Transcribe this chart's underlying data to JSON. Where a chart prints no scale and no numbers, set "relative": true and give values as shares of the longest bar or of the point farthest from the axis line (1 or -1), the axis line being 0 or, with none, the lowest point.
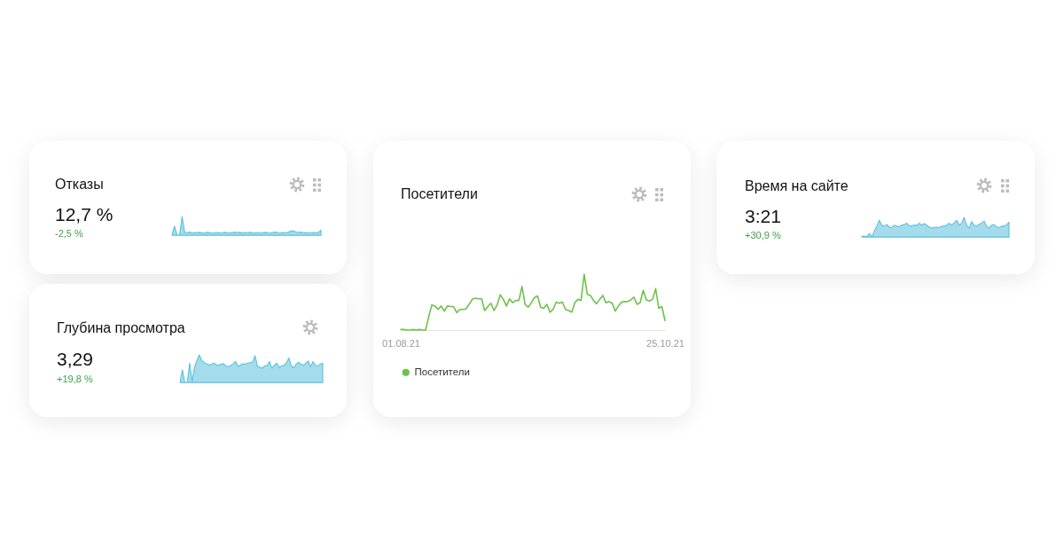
{
  "chart_data": [
    {
      "type": "area",
      "title": "Отказы",
      "subtitle": "12,7 %",
      "annotations": [
        "-2,5 %"
      ],
      "relative": true,
      "color": "#5bc0de",
      "categories": [
        null,
        null,
        null,
        null,
        null,
        null,
        null,
        null,
        null,
        null,
        null,
        null,
        null,
        null,
        null,
        null,
        null,
        null,
        null,
        null,
        null,
        null,
        null,
        null,
        null,
        null,
        null,
        null,
        null,
        null,
        null,
        null,
        null,
        null,
        null,
        null,
        null,
        null,
        null,
        null,
        null,
        null,
        null,
        null,
        null,
        null,
        null,
        null,
        null,
        null,
        null,
        null,
        null,
        null,
        null,
        null,
        null,
        null,
        null,
        null
      ],
      "values": [
        0,
        0.48,
        0,
        0,
        1,
        0.15,
        0.13,
        0.16,
        0.12,
        0.14,
        0.13,
        0.15,
        0.12,
        0.13,
        0.15,
        0.13,
        0.11,
        0.13,
        0.14,
        0.12,
        0.13,
        0.15,
        0.13,
        0.12,
        0.14,
        0.16,
        0.13,
        0.15,
        0.12,
        0.14,
        0.13,
        0.15,
        0.13,
        0.12,
        0.14,
        0.11,
        0.13,
        0.15,
        0.13,
        0.12,
        0.14,
        0.16,
        0.13,
        0.12,
        0.14,
        0.13,
        0.15,
        0.21,
        0.24,
        0.17,
        0.14,
        0.16,
        0.13,
        0.14,
        0.12,
        0.13,
        0.14,
        0.13,
        0.15,
        0.27
      ]
    },
    {
      "type": "area",
      "title": "Глубина просмотра",
      "subtitle": "3,29",
      "annotations": [
        "+19,8 %"
      ],
      "relative": true,
      "color": "#5bc0de",
      "categories": [
        null,
        null,
        null,
        null,
        null,
        null,
        null,
        null,
        null,
        null,
        null,
        null,
        null,
        null,
        null,
        null,
        null,
        null,
        null,
        null,
        null,
        null,
        null,
        null,
        null,
        null,
        null,
        null,
        null,
        null,
        null,
        null,
        null,
        null,
        null,
        null,
        null,
        null,
        null,
        null,
        null,
        null,
        null,
        null,
        null,
        null,
        null,
        null,
        null,
        null,
        null,
        null,
        null,
        null,
        null,
        null,
        null,
        null,
        null,
        null
      ],
      "values": [
        0,
        0.46,
        0,
        0,
        0.7,
        0.05,
        0.55,
        0.8,
        1,
        0.8,
        0.72,
        0.68,
        0.63,
        0.66,
        0.7,
        0.64,
        0.62,
        0.67,
        0.68,
        0.6,
        0.57,
        0.62,
        0.68,
        0.76,
        0.58,
        0.63,
        0.68,
        0.66,
        0.7,
        0.72,
        0.73,
        0.97,
        0.6,
        0.55,
        0.52,
        0.6,
        0.62,
        0.76,
        0.52,
        0.62,
        0.7,
        0.54,
        0.6,
        0.62,
        0.72,
        0.89,
        0.6,
        0.54,
        0.66,
        0.73,
        0.66,
        0.62,
        0.7,
        0.78,
        0.57,
        0.76,
        0.62,
        0.6,
        0.66,
        0.7
      ]
    },
    {
      "type": "line",
      "title": "Посетители",
      "relative": true,
      "legend": "bottom",
      "x": [
        "2021-08-01",
        "2021-08-02",
        "2021-08-03",
        "2021-08-04",
        "2021-08-05",
        "2021-08-06",
        "2021-08-07",
        "2021-08-08",
        "2021-08-09",
        "2021-08-10",
        "2021-08-11",
        "2021-08-12",
        "2021-08-13",
        "2021-08-14",
        "2021-08-15",
        "2021-08-16",
        "2021-08-17",
        "2021-08-18",
        "2021-08-19",
        "2021-08-20",
        "2021-08-21",
        "2021-08-22",
        "2021-08-23",
        "2021-08-24",
        "2021-08-25",
        "2021-08-26",
        "2021-08-27",
        "2021-08-28",
        "2021-08-29",
        "2021-08-30",
        "2021-08-31",
        "2021-09-01",
        "2021-09-02",
        "2021-09-03",
        "2021-09-04",
        "2021-09-05",
        "2021-09-06",
        "2021-09-07",
        "2021-09-08",
        "2021-09-09",
        "2021-09-10",
        "2021-09-11",
        "2021-09-12",
        "2021-09-13",
        "2021-09-14",
        "2021-09-15",
        "2021-09-16",
        "2021-09-17",
        "2021-09-18",
        "2021-09-19",
        "2021-09-20",
        "2021-09-21",
        "2021-09-22",
        "2021-09-23",
        "2021-09-24",
        "2021-09-25",
        "2021-09-26",
        "2021-09-27",
        "2021-09-28",
        "2021-09-29",
        "2021-09-30",
        "2021-10-01",
        "2021-10-02",
        "2021-10-03",
        "2021-10-04",
        "2021-10-05",
        "2021-10-06",
        "2021-10-07",
        "2021-10-08",
        "2021-10-09",
        "2021-10-10",
        "2021-10-11",
        "2021-10-12",
        "2021-10-13",
        "2021-10-14",
        "2021-10-15",
        "2021-10-16",
        "2021-10-17",
        "2021-10-18",
        "2021-10-19",
        "2021-10-20",
        "2021-10-21",
        "2021-10-22",
        "2021-10-23",
        "2021-10-24",
        "2021-10-25"
      ],
      "xlim": [
        "2021-08-01",
        "2021-10-25"
      ],
      "xticks": [
        {
          "value": "2021-08-01",
          "label": "01.08.21"
        },
        {
          "value": "2021-10-25",
          "label": "25.10.21"
        }
      ],
      "series": [
        {
          "name": "Посетители",
          "color": "#6cc24a",
          "values": [
            0.01,
            0.01,
            0,
            0,
            0.01,
            0,
            0.01,
            0,
            0,
            0.24,
            0.45,
            0.43,
            0.37,
            0.43,
            0.34,
            0.43,
            0.42,
            0.42,
            0.31,
            0.37,
            0.37,
            0.38,
            0.46,
            0.55,
            0.57,
            0.56,
            0.56,
            0.35,
            0.42,
            0.48,
            0.35,
            0.45,
            0.63,
            0.55,
            0.43,
            0.56,
            0.49,
            0.53,
            0.53,
            0.78,
            0.46,
            0.41,
            0.49,
            0.58,
            0.61,
            0.41,
            0.39,
            0.46,
            0.32,
            0.37,
            0.5,
            0.48,
            0.5,
            0.37,
            0.35,
            0.32,
            0.49,
            0.55,
            0.53,
            1,
            0.64,
            0.62,
            0.53,
            0.47,
            0.55,
            0.62,
            0.49,
            0.51,
            0.48,
            0.34,
            0.43,
            0.5,
            0.51,
            0.51,
            0.54,
            0.59,
            0.46,
            0.49,
            0.71,
            0.54,
            0.52,
            0.55,
            0.74,
            0.39,
            0.42,
            0.17
          ]
        }
      ]
    },
    {
      "type": "area",
      "title": "Время на сайте",
      "subtitle": "3:21",
      "annotations": [
        "+30,9 %"
      ],
      "relative": true,
      "color": "#5bc0de",
      "categories": [
        null,
        null,
        null,
        null,
        null,
        null,
        null,
        null,
        null,
        null,
        null,
        null,
        null,
        null,
        null,
        null,
        null,
        null,
        null,
        null,
        null,
        null,
        null,
        null,
        null,
        null,
        null,
        null,
        null,
        null,
        null,
        null,
        null,
        null,
        null,
        null,
        null,
        null,
        null,
        null,
        null,
        null,
        null,
        null,
        null,
        null,
        null,
        null,
        null,
        null,
        null,
        null,
        null,
        null,
        null,
        null,
        null,
        null,
        null,
        null
      ],
      "values": [
        0.03,
        0.03,
        0,
        0.18,
        0,
        0.3,
        0.55,
        0.85,
        0.6,
        0.55,
        0.63,
        0.5,
        0.48,
        0.6,
        0.55,
        0.52,
        0.6,
        0.63,
        0.7,
        0.58,
        0.55,
        0.62,
        0.58,
        0.7,
        0.6,
        0.68,
        0.6,
        0.5,
        0.45,
        0.48,
        0.5,
        0.48,
        0.55,
        0.55,
        0.6,
        0.7,
        0.6,
        0.72,
        0.85,
        0.6,
        0.7,
        1,
        0.6,
        0.45,
        0.78,
        0.6,
        0.55,
        0.65,
        0.7,
        0.81,
        0.55,
        0.45,
        0.6,
        0.63,
        0.52,
        0.45,
        0.55,
        0.55,
        0.62,
        0.75
      ]
    }
  ]
}
